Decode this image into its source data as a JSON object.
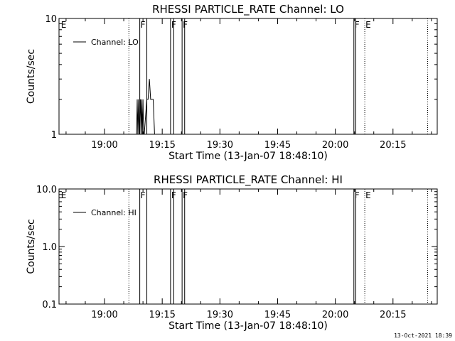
{
  "timestamp": "13-Oct-2021 18:39",
  "chart_data": [
    {
      "type": "line",
      "title": "RHESSI PARTICLE_RATE Channel: LO",
      "xlabel": "Start Time (13-Jan-07 18:48:10)",
      "ylabel": "Counts/sec",
      "xlim": [
        "18:48:10",
        "20:26:30"
      ],
      "ylim": [
        1,
        10
      ],
      "yscale": "log",
      "xticks": [
        "19:00",
        "19:15",
        "19:30",
        "19:45",
        "20:00",
        "20:15"
      ],
      "yticks": [
        "1",
        "10"
      ],
      "legend": {
        "label": "Channel: LO",
        "position": "top-left"
      },
      "event_markers": [
        {
          "time": "18:48:30",
          "label": "E",
          "style": "none"
        },
        {
          "time": "19:06:20",
          "label": "",
          "style": "dotted"
        },
        {
          "time": "19:09:10",
          "label": "F",
          "style": "solid"
        },
        {
          "time": "19:11:00",
          "label": "",
          "style": "solid"
        },
        {
          "time": "19:17:10",
          "label": "F",
          "style": "solid"
        },
        {
          "time": "19:18:00",
          "label": "",
          "style": "solid"
        },
        {
          "time": "19:20:10",
          "label": "F",
          "style": "solid"
        },
        {
          "time": "19:20:50",
          "label": "",
          "style": "solid"
        },
        {
          "time": "20:04:50",
          "label": "F",
          "style": "solid"
        },
        {
          "time": "20:05:20",
          "label": "",
          "style": "solid"
        },
        {
          "time": "20:07:40",
          "label": "E",
          "style": "dotted"
        },
        {
          "time": "20:24:00",
          "label": "",
          "style": "dotted"
        }
      ],
      "series": [
        {
          "points": [
            [
              "19:08:20",
              1
            ],
            [
              "19:08:30",
              2
            ],
            [
              "19:08:40",
              1
            ],
            [
              "19:08:50",
              2
            ],
            [
              "19:09:00",
              1
            ],
            [
              "19:09:20",
              2
            ],
            [
              "19:09:30",
              1
            ],
            [
              "19:09:40",
              2
            ],
            [
              "19:09:50",
              1
            ],
            [
              "19:10:00",
              2
            ],
            [
              "19:10:10",
              1
            ],
            [
              "19:10:20",
              1
            ],
            [
              "19:11:00",
              2
            ],
            [
              "19:11:20",
              2
            ],
            [
              "19:11:40",
              3
            ],
            [
              "19:12:00",
              2
            ],
            [
              "19:12:40",
              2
            ],
            [
              "19:13:00",
              1
            ]
          ]
        }
      ]
    },
    {
      "type": "line",
      "title": "RHESSI PARTICLE_RATE Channel: HI",
      "xlabel": "Start Time (13-Jan-07 18:48:10)",
      "ylabel": "Counts/sec",
      "xlim": [
        "18:48:10",
        "20:26:30"
      ],
      "ylim": [
        0.1,
        10
      ],
      "yscale": "log",
      "xticks": [
        "19:00",
        "19:15",
        "19:30",
        "19:45",
        "20:00",
        "20:15"
      ],
      "yticks": [
        "0.1",
        "1.0",
        "10.0"
      ],
      "legend": {
        "label": "Channel: HI",
        "position": "top-left"
      },
      "event_markers": [
        {
          "time": "18:48:30",
          "label": "E",
          "style": "none"
        },
        {
          "time": "19:06:20",
          "label": "",
          "style": "dotted"
        },
        {
          "time": "19:09:10",
          "label": "F",
          "style": "solid"
        },
        {
          "time": "19:11:00",
          "label": "",
          "style": "solid"
        },
        {
          "time": "19:17:10",
          "label": "F",
          "style": "solid"
        },
        {
          "time": "19:18:00",
          "label": "",
          "style": "solid"
        },
        {
          "time": "19:20:10",
          "label": "F",
          "style": "solid"
        },
        {
          "time": "19:20:50",
          "label": "",
          "style": "solid"
        },
        {
          "time": "20:04:50",
          "label": "F",
          "style": "solid"
        },
        {
          "time": "20:05:20",
          "label": "",
          "style": "solid"
        },
        {
          "time": "20:07:40",
          "label": "E",
          "style": "dotted"
        },
        {
          "time": "20:24:00",
          "label": "",
          "style": "dotted"
        }
      ],
      "series": [
        {
          "points": []
        }
      ]
    }
  ]
}
